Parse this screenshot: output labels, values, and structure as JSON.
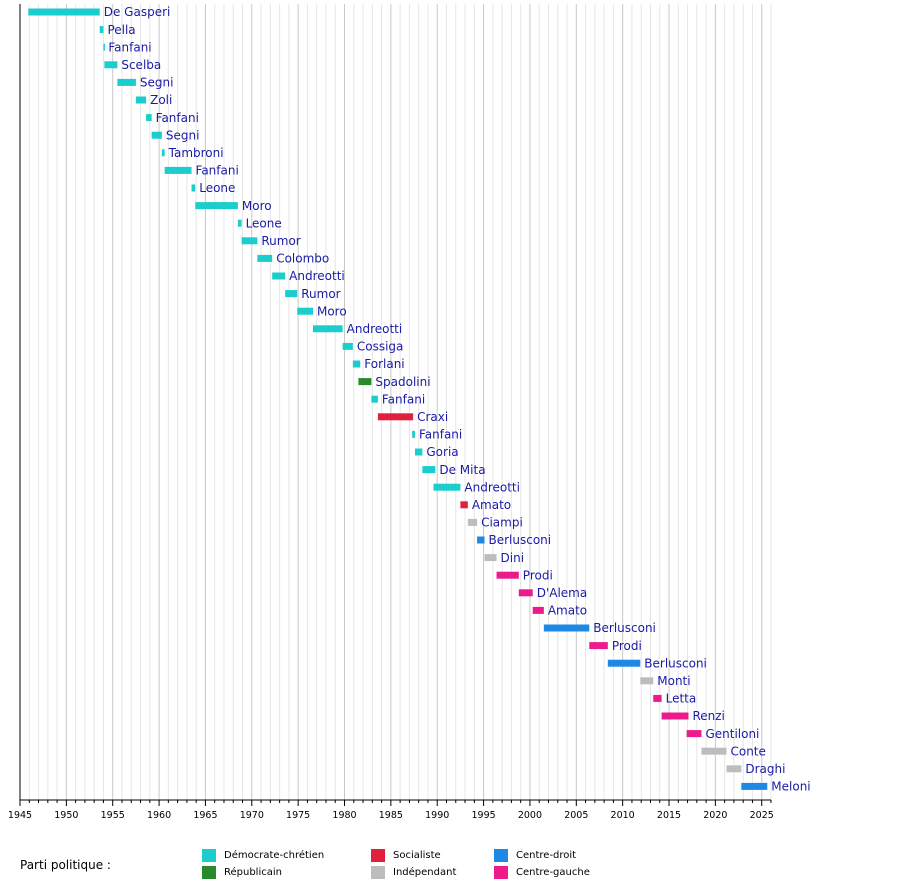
{
  "chart_data": {
    "type": "bar",
    "orientation": "horizontal-timeline",
    "xlim": [
      1945,
      2026
    ],
    "x_ticks": [
      1945,
      1950,
      1955,
      1960,
      1965,
      1970,
      1975,
      1980,
      1985,
      1990,
      1995,
      2000,
      2005,
      2010,
      2015,
      2020,
      2025
    ],
    "grid": true,
    "parties": {
      "dc": {
        "label": "Démocrate-chrétien",
        "color": "#1bcdcd"
      },
      "rep": {
        "label": "Républicain",
        "color": "#2a8a2a"
      },
      "soc": {
        "label": "Socialiste",
        "color": "#e0203c"
      },
      "ind": {
        "label": "Indépendant",
        "color": "#bdbdbd"
      },
      "cd": {
        "label": "Centre-droit",
        "color": "#1e88e5"
      },
      "cg": {
        "label": "Centre-gauche",
        "color": "#ec1b8c"
      }
    },
    "series": [
      {
        "name": "De Gasperi",
        "start": 1945.9,
        "end": 1953.6,
        "party": "dc"
      },
      {
        "name": "Pella",
        "start": 1953.6,
        "end": 1954.0,
        "party": "dc"
      },
      {
        "name": "Fanfani",
        "start": 1954.0,
        "end": 1954.1,
        "party": "dc"
      },
      {
        "name": "Scelba",
        "start": 1954.1,
        "end": 1955.5,
        "party": "dc"
      },
      {
        "name": "Segni",
        "start": 1955.5,
        "end": 1957.5,
        "party": "dc"
      },
      {
        "name": "Zoli",
        "start": 1957.5,
        "end": 1958.6,
        "party": "dc"
      },
      {
        "name": "Fanfani",
        "start": 1958.6,
        "end": 1959.2,
        "party": "dc"
      },
      {
        "name": "Segni",
        "start": 1959.2,
        "end": 1960.3,
        "party": "dc"
      },
      {
        "name": "Tambroni",
        "start": 1960.3,
        "end": 1960.6,
        "party": "dc"
      },
      {
        "name": "Fanfani",
        "start": 1960.6,
        "end": 1963.5,
        "party": "dc"
      },
      {
        "name": "Leone",
        "start": 1963.5,
        "end": 1963.9,
        "party": "dc"
      },
      {
        "name": "Moro",
        "start": 1963.9,
        "end": 1968.5,
        "party": "dc"
      },
      {
        "name": "Leone",
        "start": 1968.5,
        "end": 1968.9,
        "party": "dc"
      },
      {
        "name": "Rumor",
        "start": 1968.9,
        "end": 1970.6,
        "party": "dc"
      },
      {
        "name": "Colombo",
        "start": 1970.6,
        "end": 1972.2,
        "party": "dc"
      },
      {
        "name": "Andreotti",
        "start": 1972.2,
        "end": 1973.6,
        "party": "dc"
      },
      {
        "name": "Rumor",
        "start": 1973.6,
        "end": 1974.9,
        "party": "dc"
      },
      {
        "name": "Moro",
        "start": 1974.9,
        "end": 1976.6,
        "party": "dc"
      },
      {
        "name": "Andreotti",
        "start": 1976.6,
        "end": 1979.8,
        "party": "dc"
      },
      {
        "name": "Cossiga",
        "start": 1979.8,
        "end": 1980.9,
        "party": "dc"
      },
      {
        "name": "Forlani",
        "start": 1980.9,
        "end": 1981.7,
        "party": "dc"
      },
      {
        "name": "Spadolini",
        "start": 1981.5,
        "end": 1982.9,
        "party": "rep"
      },
      {
        "name": "Fanfani",
        "start": 1982.9,
        "end": 1983.6,
        "party": "dc"
      },
      {
        "name": "Craxi",
        "start": 1983.6,
        "end": 1987.4,
        "party": "soc"
      },
      {
        "name": "Fanfani",
        "start": 1987.3,
        "end": 1987.6,
        "party": "dc"
      },
      {
        "name": "Goria",
        "start": 1987.6,
        "end": 1988.4,
        "party": "dc"
      },
      {
        "name": "De Mita",
        "start": 1988.4,
        "end": 1989.8,
        "party": "dc"
      },
      {
        "name": "Andreotti",
        "start": 1989.6,
        "end": 1992.5,
        "party": "dc"
      },
      {
        "name": "Amato",
        "start": 1992.5,
        "end": 1993.3,
        "party": "soc"
      },
      {
        "name": "Ciampi",
        "start": 1993.3,
        "end": 1994.3,
        "party": "ind"
      },
      {
        "name": "Berlusconi",
        "start": 1994.3,
        "end": 1995.1,
        "party": "cd"
      },
      {
        "name": "Dini",
        "start": 1995.1,
        "end": 1996.4,
        "party": "ind"
      },
      {
        "name": "Prodi",
        "start": 1996.4,
        "end": 1998.8,
        "party": "cg"
      },
      {
        "name": "D'Alema",
        "start": 1998.8,
        "end": 2000.3,
        "party": "cg"
      },
      {
        "name": "Amato",
        "start": 2000.3,
        "end": 2001.5,
        "party": "cg"
      },
      {
        "name": "Berlusconi",
        "start": 2001.5,
        "end": 2006.4,
        "party": "cd"
      },
      {
        "name": "Prodi",
        "start": 2006.4,
        "end": 2008.4,
        "party": "cg"
      },
      {
        "name": "Berlusconi",
        "start": 2008.4,
        "end": 2011.9,
        "party": "cd"
      },
      {
        "name": "Monti",
        "start": 2011.9,
        "end": 2013.3,
        "party": "ind"
      },
      {
        "name": "Letta",
        "start": 2013.3,
        "end": 2014.2,
        "party": "cg"
      },
      {
        "name": "Renzi",
        "start": 2014.2,
        "end": 2017.1,
        "party": "cg"
      },
      {
        "name": "Gentiloni",
        "start": 2016.9,
        "end": 2018.5,
        "party": "cg"
      },
      {
        "name": "Conte",
        "start": 2018.5,
        "end": 2021.2,
        "party": "ind"
      },
      {
        "name": "Draghi",
        "start": 2021.2,
        "end": 2022.8,
        "party": "ind"
      },
      {
        "name": "Meloni",
        "start": 2022.8,
        "end": 2025.6,
        "party": "cd"
      }
    ]
  },
  "legend": {
    "title": "Parti politique :",
    "order": [
      "dc",
      "rep",
      "soc",
      "ind",
      "cd",
      "cg"
    ]
  }
}
